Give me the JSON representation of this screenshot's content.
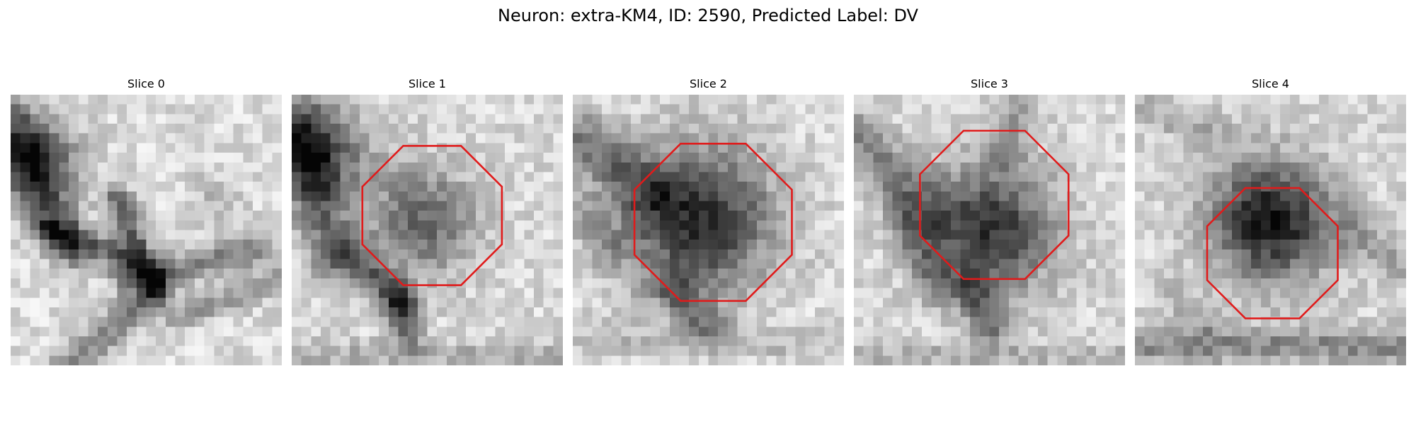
{
  "figure": {
    "title": "Neuron: extra-KM4, ID: 2590, Predicted Label: DV"
  },
  "colors": {
    "roi_outline": "#e01b1b",
    "background": "#ffffff"
  },
  "panels": [
    {
      "title": "Slice 0",
      "roi_shown": false
    },
    {
      "title": "Slice 1",
      "roi_shown": true
    },
    {
      "title": "Slice 2",
      "roi_shown": true
    },
    {
      "title": "Slice 3",
      "roi_shown": true
    },
    {
      "title": "Slice 4",
      "roi_shown": true
    }
  ]
}
